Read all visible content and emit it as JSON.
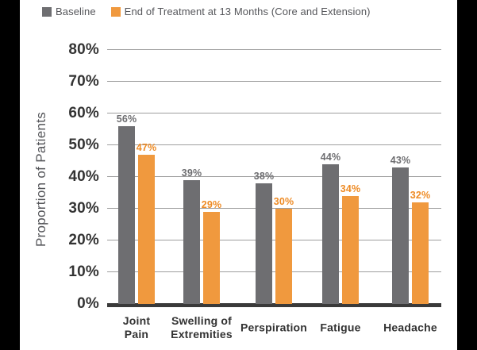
{
  "chart_data": {
    "type": "bar",
    "title": "",
    "xlabel": "",
    "ylabel": "Proportion of Patients",
    "categories": [
      "Joint Pain",
      "Swelling of Extremities",
      "Perspiration",
      "Fatigue",
      "Headache"
    ],
    "category_label_lines": [
      [
        "Joint",
        "Pain"
      ],
      [
        "Swelling of",
        "Extremities"
      ],
      [
        "Perspiration"
      ],
      [
        "Fatigue"
      ],
      [
        "Headache"
      ]
    ],
    "series": [
      {
        "name": "Baseline",
        "color": "#6e6e71",
        "label_color": "#6e6e71",
        "values": [
          56,
          39,
          38,
          44,
          43
        ]
      },
      {
        "name": "End of Treatment at 13 Months (Core and Extension)",
        "color": "#f0993e",
        "label_color": "#ee8b25",
        "values": [
          47,
          29,
          30,
          34,
          32
        ]
      }
    ],
    "value_labels": [
      [
        "56%",
        "39%",
        "38%",
        "44%",
        "43%"
      ],
      [
        "47%",
        "29%",
        "30%",
        "34%",
        "32%"
      ]
    ],
    "y_ticks": [
      "0%",
      "10%",
      "20%",
      "30%",
      "40%",
      "50%",
      "60%",
      "70%",
      "80%"
    ],
    "ylim": [
      0,
      80
    ],
    "grid": true,
    "legend_position": "top",
    "colors": {
      "grid": "#9e9e9e",
      "axis": "#3a3a3a",
      "tick_text": "#333333",
      "legend_text": "#55565a"
    }
  }
}
